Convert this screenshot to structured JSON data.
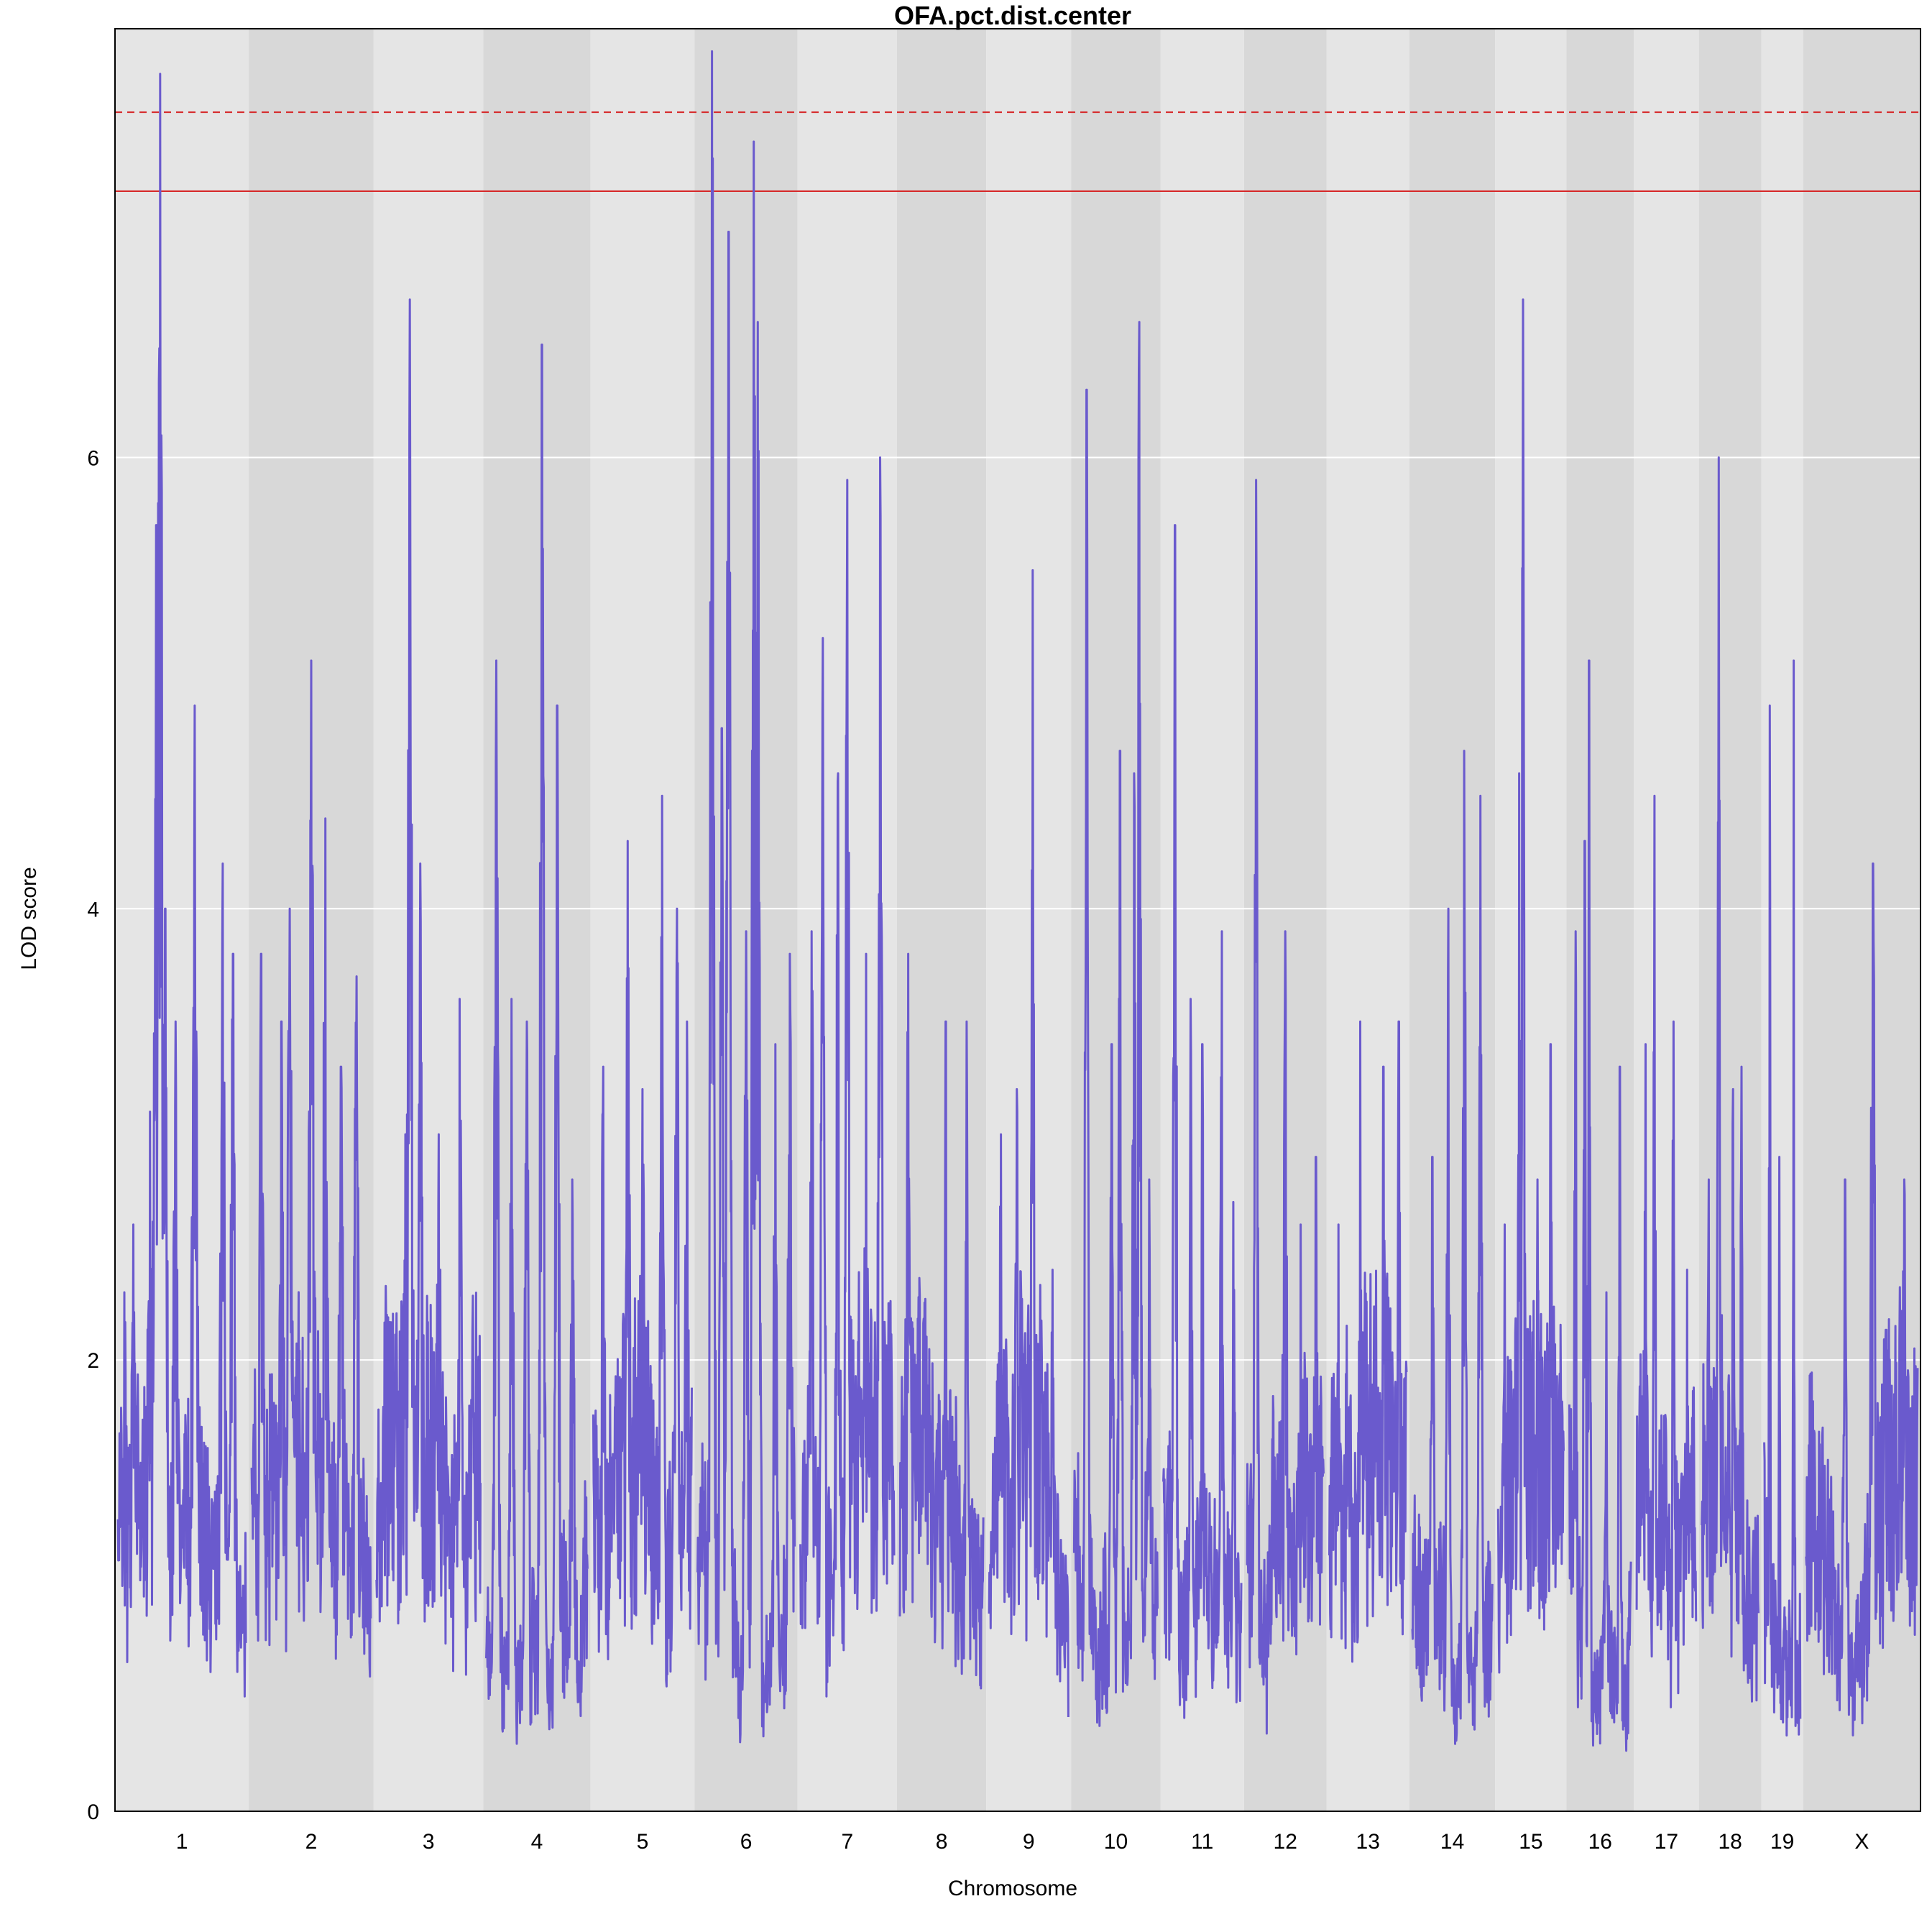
{
  "chart_data": {
    "type": "line",
    "title": "OFA.pct.dist.center",
    "xlabel": "Chromosome",
    "ylabel": "LOD score",
    "ylim": [
      0,
      7.9
    ],
    "y_ticks": [
      0,
      2,
      4,
      6
    ],
    "grid": true,
    "line_color": "#6a5acd",
    "band_colors": [
      "#e5e5e5",
      "#d8d8d8"
    ],
    "threshold_color": "#d62728",
    "thresholds": [
      {
        "value": 7.53,
        "style": "dashed"
      },
      {
        "value": 7.18,
        "style": "solid"
      }
    ],
    "chromosomes": [
      {
        "label": "1",
        "length": 195,
        "peaks": [
          [
            0.05,
            2.3
          ],
          [
            0.12,
            2.6
          ],
          [
            0.25,
            3.1
          ],
          [
            0.3,
            5.7
          ],
          [
            0.33,
            7.7
          ],
          [
            0.37,
            4.0
          ],
          [
            0.45,
            3.5
          ],
          [
            0.6,
            4.9
          ],
          [
            0.82,
            4.2
          ],
          [
            0.9,
            3.8
          ]
        ]
      },
      {
        "label": "2",
        "length": 182,
        "peaks": [
          [
            0.08,
            3.8
          ],
          [
            0.25,
            3.5
          ],
          [
            0.32,
            4.0
          ],
          [
            0.5,
            5.1
          ],
          [
            0.62,
            4.4
          ],
          [
            0.75,
            3.3
          ],
          [
            0.88,
            3.7
          ]
        ]
      },
      {
        "label": "3",
        "length": 160,
        "peaks": [
          [
            0.1,
            2.2
          ],
          [
            0.28,
            3.0
          ],
          [
            0.32,
            6.7
          ],
          [
            0.42,
            4.2
          ],
          [
            0.6,
            3.0
          ],
          [
            0.8,
            3.6
          ]
        ]
      },
      {
        "label": "4",
        "length": 156,
        "peaks": [
          [
            0.1,
            5.1
          ],
          [
            0.25,
            3.6
          ],
          [
            0.4,
            3.5
          ],
          [
            0.55,
            6.5
          ],
          [
            0.7,
            4.9
          ],
          [
            0.85,
            2.8
          ]
        ]
      },
      {
        "label": "5",
        "length": 152,
        "peaks": [
          [
            0.1,
            3.3
          ],
          [
            0.35,
            4.3
          ],
          [
            0.5,
            3.2
          ],
          [
            0.7,
            4.5
          ],
          [
            0.85,
            4.0
          ],
          [
            0.95,
            3.5
          ]
        ]
      },
      {
        "label": "6",
        "length": 150,
        "peaks": [
          [
            0.15,
            7.8
          ],
          [
            0.25,
            4.8
          ],
          [
            0.32,
            7.0
          ],
          [
            0.5,
            3.9
          ],
          [
            0.58,
            7.4
          ],
          [
            0.62,
            6.6
          ],
          [
            0.8,
            3.4
          ],
          [
            0.95,
            3.8
          ]
        ]
      },
      {
        "label": "7",
        "length": 145,
        "peaks": [
          [
            0.12,
            3.9
          ],
          [
            0.24,
            5.2
          ],
          [
            0.4,
            4.6
          ],
          [
            0.5,
            5.9
          ],
          [
            0.7,
            3.8
          ],
          [
            0.85,
            6.0
          ]
        ]
      },
      {
        "label": "8",
        "length": 130,
        "peaks": [
          [
            0.1,
            3.8
          ],
          [
            0.3,
            1.7
          ],
          [
            0.55,
            3.5
          ],
          [
            0.8,
            3.5
          ]
        ]
      },
      {
        "label": "9",
        "length": 124,
        "peaks": [
          [
            0.15,
            3.0
          ],
          [
            0.35,
            3.2
          ],
          [
            0.55,
            5.5
          ],
          [
            0.8,
            2.4
          ]
        ]
      },
      {
        "label": "10",
        "length": 130,
        "peaks": [
          [
            0.15,
            6.3
          ],
          [
            0.45,
            3.4
          ],
          [
            0.55,
            4.7
          ],
          [
            0.72,
            4.6
          ],
          [
            0.78,
            6.6
          ],
          [
            0.9,
            2.8
          ]
        ]
      },
      {
        "label": "11",
        "length": 122,
        "peaks": [
          [
            0.15,
            5.7
          ],
          [
            0.35,
            3.6
          ],
          [
            0.5,
            3.4
          ],
          [
            0.75,
            3.9
          ],
          [
            0.9,
            2.7
          ]
        ]
      },
      {
        "label": "12",
        "length": 120,
        "peaks": [
          [
            0.12,
            5.9
          ],
          [
            0.5,
            3.9
          ],
          [
            0.7,
            2.6
          ],
          [
            0.9,
            2.9
          ]
        ]
      },
      {
        "label": "13",
        "length": 121,
        "peaks": [
          [
            0.12,
            2.6
          ],
          [
            0.4,
            3.5
          ],
          [
            0.7,
            3.3
          ],
          [
            0.9,
            3.5
          ]
        ]
      },
      {
        "label": "14",
        "length": 125,
        "peaks": [
          [
            0.25,
            2.9
          ],
          [
            0.45,
            4.0
          ],
          [
            0.65,
            4.7
          ],
          [
            0.85,
            4.5
          ]
        ]
      },
      {
        "label": "15",
        "length": 104,
        "peaks": [
          [
            0.1,
            2.6
          ],
          [
            0.32,
            4.6
          ],
          [
            0.38,
            6.7
          ],
          [
            0.6,
            2.8
          ],
          [
            0.8,
            3.4
          ]
        ]
      },
      {
        "label": "16",
        "length": 98,
        "peaks": [
          [
            0.1,
            3.9
          ],
          [
            0.25,
            4.3
          ],
          [
            0.32,
            5.1
          ],
          [
            0.6,
            2.3
          ],
          [
            0.82,
            3.3
          ]
        ]
      },
      {
        "label": "17",
        "length": 95,
        "peaks": [
          [
            0.15,
            3.4
          ],
          [
            0.3,
            4.5
          ],
          [
            0.62,
            3.5
          ],
          [
            0.85,
            2.4
          ]
        ]
      },
      {
        "label": "18",
        "length": 91,
        "peaks": [
          [
            0.12,
            2.8
          ],
          [
            0.3,
            6.0
          ],
          [
            0.55,
            3.2
          ],
          [
            0.7,
            3.3
          ]
        ]
      },
      {
        "label": "19",
        "length": 61,
        "peaks": [
          [
            0.15,
            4.9
          ],
          [
            0.42,
            2.9
          ],
          [
            0.82,
            5.1
          ]
        ]
      },
      {
        "label": "X",
        "length": 171,
        "peaks": [
          [
            0.15,
            1.7
          ],
          [
            0.35,
            2.8
          ],
          [
            0.6,
            4.2
          ],
          [
            0.88,
            2.8
          ]
        ]
      }
    ]
  }
}
